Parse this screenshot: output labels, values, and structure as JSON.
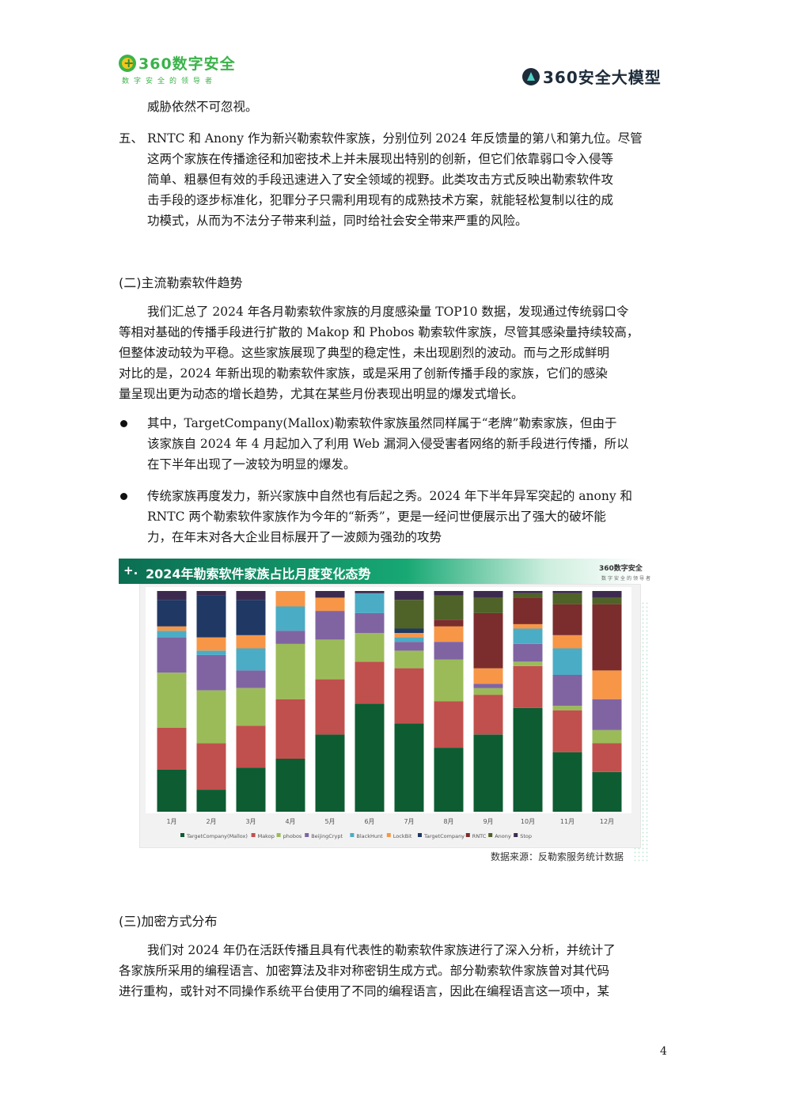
{
  "header": {
    "left_logo": "360数字安全",
    "left_tagline": "数字安全的领导者",
    "right_logo": "360安全大模型"
  },
  "body": {
    "intro_line": "威胁依然不可忽视。",
    "item5": {
      "marker": "五、",
      "lines": [
        "RNTC 和 Anony 作为新兴勒索软件家族，分别位列 2024 年反馈量的第八和第九位。尽管",
        "这两个家族在传播途径和加密技术上并未展现出特别的创新，但它们依靠弱口令入侵等",
        "简单、粗暴但有效的手段迅速进入了安全领域的视野。此类攻击方式反映出勒索软件攻",
        "击手段的逐步标准化，犯罪分子只需利用现有的成熟技术方案，就能轻松复制以往的成",
        "功模式，从而为不法分子带来利益，同时给社会安全带来严重的风险。"
      ]
    },
    "section2_heading": "(二)主流勒索软件趋势",
    "section2_para": [
      "我们汇总了 2024 年各月勒索软件家族的月度感染量 TOP10 数据，发现通过传统弱口令",
      "等相对基础的传播手段进行扩散的 Makop 和 Phobos 勒索软件家族，尽管其感染量持续较高，",
      "但整体波动较为平稳。这些家族展现了典型的稳定性，未出现剧烈的波动。而与之形成鲜明",
      "对比的是，2024 年新出现的勒索软件家族，或是采用了创新传播手段的家族，它们的感染",
      "量呈现出更为动态的增长趋势，尤其在某些月份表现出明显的爆发式增长。"
    ],
    "bullet1": [
      "其中，TargetCompany(Mallox)勒索软件家族虽然同样属于“老牌”勒索家族，但由于",
      "该家族自 2024 年 4 月起加入了利用 Web 漏洞入侵受害者网络的新手段进行传播，所以",
      "在下半年出现了一波较为明显的爆发。"
    ],
    "bullet2": [
      "传统家族再度发力，新兴家族中自然也有后起之秀。2024 年下半年异军突起的 anony 和",
      "RNTC 两个勒索软件家族作为今年的“新秀”，更是一经问世便展示出了强大的破坏能",
      "力，在年末对各大企业目标展开了一波颇为强劲的攻势"
    ],
    "figure": {
      "banner_mark": "+.",
      "banner_title": "2024年勒索软件家族占比月度变化态势",
      "mini_logo": "360数字安全",
      "mini_tagline": "数字安全的领导者",
      "source": "数据来源：反勒索服务统计数据"
    },
    "section3_heading": "(三)加密方式分布",
    "section3_para": [
      "我们对 2024 年仍在活跃传播且具有代表性的勒索软件家族进行了深入分析，并统计了",
      "各家族所采用的编程语言、加密算法及非对称密钥生成方式。部分勒索软件家族曾对其代码",
      "进行重构，或针对不同操作系统平台使用了不同的编程语言，因此在编程语言这一项中，某"
    ],
    "page_number": "4"
  },
  "chart_data": {
    "type": "bar",
    "stacked": true,
    "percent": true,
    "categories": [
      "1月",
      "2月",
      "3月",
      "4月",
      "5月",
      "6月",
      "7月",
      "8月",
      "9月",
      "10月",
      "11月",
      "12月"
    ],
    "series": [
      {
        "name": "TargetCompany(Mallox)",
        "color": "#0e5c32",
        "values": [
          19,
          10,
          20,
          24,
          35,
          49,
          40,
          29,
          35,
          47,
          27,
          18
        ]
      },
      {
        "name": "Makop",
        "color": "#c0504d",
        "values": [
          19,
          21,
          19,
          27,
          25,
          19,
          25,
          21,
          18,
          19,
          19,
          13
        ]
      },
      {
        "name": "phobos",
        "color": "#9bbb59",
        "values": [
          25,
          24,
          17,
          25,
          18,
          13,
          8,
          19,
          3,
          2,
          2,
          6
        ]
      },
      {
        "name": "BeijingCrypt",
        "color": "#8064a2",
        "values": [
          16,
          16,
          8,
          6,
          13,
          9,
          4,
          8,
          2,
          8,
          14,
          14
        ]
      },
      {
        "name": "BlackHunt",
        "color": "#4bacc6",
        "values": [
          3,
          2,
          10,
          11,
          0,
          9,
          2,
          0,
          0,
          7,
          12,
          0
        ]
      },
      {
        "name": "LockBit",
        "color": "#f79646",
        "values": [
          2,
          6,
          6,
          7,
          6,
          0,
          2,
          7,
          7,
          2,
          6,
          13
        ]
      },
      {
        "name": "TargetCompany",
        "color": "#1f3864",
        "values": [
          12,
          19,
          16,
          0,
          0,
          0,
          2,
          0,
          0,
          0,
          0,
          0
        ]
      },
      {
        "name": "RNTC",
        "color": "#7b2c2c",
        "values": [
          0,
          0,
          0,
          0,
          0,
          0,
          0,
          3,
          25,
          12,
          14,
          30
        ]
      },
      {
        "name": "Anony",
        "color": "#4f6228",
        "values": [
          0,
          0,
          0,
          0,
          0,
          0,
          13,
          11,
          7,
          2,
          5,
          3
        ]
      },
      {
        "name": "Stop",
        "color": "#3d2b4f",
        "values": [
          4,
          2,
          4,
          0,
          3,
          1,
          4,
          2,
          3,
          1,
          1,
          3
        ]
      }
    ],
    "ylim": [
      0,
      100
    ],
    "grid": false,
    "legend": "bottom"
  }
}
